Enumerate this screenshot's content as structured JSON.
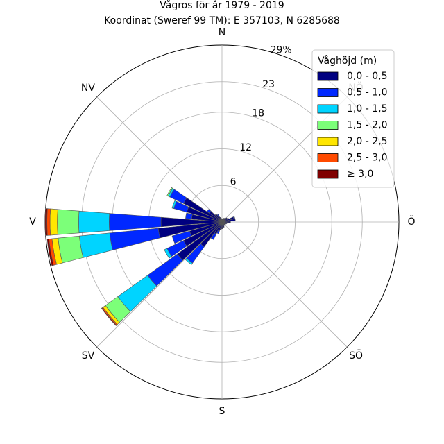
{
  "chart_data": {
    "type": "windrose",
    "title": "Vågros för år 1979 - 2019",
    "subtitle": "Koordinat (Sweref 99 TM): E 357103, N 6285688",
    "directions": [
      "N",
      "NV",
      "V",
      "SV",
      "S",
      "SÖ",
      "Ö",
      "NÖ"
    ],
    "direction_angles_deg": [
      0,
      315,
      270,
      225,
      180,
      135,
      90,
      45
    ],
    "radial_ticks": [
      "6",
      "12",
      "18",
      "23",
      "29%"
    ],
    "radial_tick_values": [
      6,
      12,
      18,
      23,
      29
    ],
    "rmax": 29,
    "legend": {
      "title": "Våghöjd (m)",
      "placement": "top-right",
      "items": [
        {
          "label": "0,0 - 0,5",
          "color": "#000080"
        },
        {
          "label": "0,5 - 1,0",
          "color": "#0028ff"
        },
        {
          "label": "1,0 - 1,5",
          "color": "#00d4ff"
        },
        {
          "label": "1,5 - 2,0",
          "color": "#7cff79"
        },
        {
          "label": "2,0 - 2,5",
          "color": "#ffe600"
        },
        {
          "label": "2,5 - 3,0",
          "color": "#ff4a00"
        },
        {
          "label": "≥ 3,0",
          "color": "#800000"
        }
      ]
    },
    "sector_width_deg": 10,
    "sectors": [
      {
        "angle": 0,
        "cum": [
          0.5
        ]
      },
      {
        "angle": 10,
        "cum": [
          0.5
        ]
      },
      {
        "angle": 20,
        "cum": [
          0.6
        ]
      },
      {
        "angle": 30,
        "cum": [
          0.7
        ]
      },
      {
        "angle": 40,
        "cum": [
          0.8
        ]
      },
      {
        "angle": 50,
        "cum": [
          1.0
        ]
      },
      {
        "angle": 60,
        "cum": [
          1.2
        ]
      },
      {
        "angle": 70,
        "cum": [
          2.0,
          2.2
        ]
      },
      {
        "angle": 80,
        "cum": [
          2.2
        ]
      },
      {
        "angle": 90,
        "cum": [
          1.4
        ]
      },
      {
        "angle": 100,
        "cum": [
          1.0
        ]
      },
      {
        "angle": 110,
        "cum": [
          0.8
        ]
      },
      {
        "angle": 120,
        "cum": [
          0.7
        ]
      },
      {
        "angle": 130,
        "cum": [
          0.6
        ]
      },
      {
        "angle": 140,
        "cum": [
          0.6
        ]
      },
      {
        "angle": 150,
        "cum": [
          0.7
        ]
      },
      {
        "angle": 160,
        "cum": [
          0.9
        ]
      },
      {
        "angle": 170,
        "cum": [
          1.0
        ]
      },
      {
        "angle": 180,
        "cum": [
          1.1
        ]
      },
      {
        "angle": 190,
        "cum": [
          1.3
        ]
      },
      {
        "angle": 200,
        "cum": [
          1.5,
          2.0
        ]
      },
      {
        "angle": 210,
        "cum": [
          2.2,
          3.2
        ]
      },
      {
        "angle": 220,
        "cum": [
          5.0,
          8.3,
          8.6
        ]
      },
      {
        "angle": 230,
        "cum": [
          9.0,
          15.0,
          21.0,
          23.5,
          24.0,
          24.2,
          24.3
        ]
      },
      {
        "angle": 240,
        "cum": [
          7.0,
          10.0,
          10.5
        ]
      },
      {
        "angle": 250,
        "cum": [
          5.5,
          8.5
        ]
      },
      {
        "angle": 260,
        "cum": [
          10.5,
          18.5,
          23.5,
          27.0,
          28.0,
          28.5,
          28.8
        ]
      },
      {
        "angle": 270,
        "cum": [
          10.0,
          18.5,
          23.5,
          27.0,
          28.2,
          28.7,
          29.0
        ]
      },
      {
        "angle": 280,
        "cum": [
          5.0,
          6.0
        ]
      },
      {
        "angle": 290,
        "cum": [
          6.0,
          8.2,
          8.5
        ]
      },
      {
        "angle": 300,
        "cum": [
          7.0,
          9.5,
          9.8,
          10.0
        ]
      },
      {
        "angle": 310,
        "cum": [
          2.5,
          3.0
        ]
      },
      {
        "angle": 320,
        "cum": [
          1.6
        ]
      },
      {
        "angle": 330,
        "cum": [
          1.2,
          1.4
        ]
      },
      {
        "angle": 340,
        "cum": [
          0.8
        ]
      },
      {
        "angle": 350,
        "cum": [
          0.6
        ]
      }
    ]
  }
}
